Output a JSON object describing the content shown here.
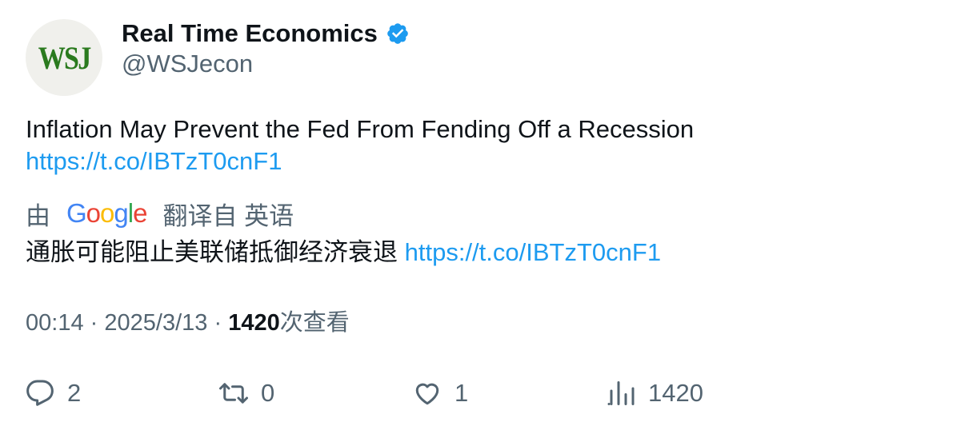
{
  "author": {
    "avatar_text": "WSJ",
    "display_name": "Real Time Economics",
    "handle": "@WSJecon",
    "verified": true
  },
  "tweet": {
    "text": "Inflation May Prevent the Fed From Fending Off a Recession",
    "link": "https://t.co/IBTzT0cnF1"
  },
  "translation": {
    "prefix": "由",
    "provider": "Google",
    "suffix": "翻译自 英语",
    "text": "通胀可能阻止美联储抵御经济衰退",
    "link": "https://t.co/IBTzT0cnF1"
  },
  "meta": {
    "time": "00:14",
    "separator": "·",
    "date": "2025/3/13",
    "views_count": "1420",
    "views_label": "次查看"
  },
  "actions": {
    "replies": "2",
    "retweets": "0",
    "likes": "1",
    "views": "1420"
  },
  "colors": {
    "link": "#1d9bf0",
    "secondary_text": "#536471",
    "primary_text": "#0f1419",
    "verified": "#1d9bf0",
    "avatar_logo": "#2a7a1e"
  },
  "icons": [
    "verified-badge-icon",
    "reply-icon",
    "retweet-icon",
    "like-icon",
    "views-icon"
  ]
}
